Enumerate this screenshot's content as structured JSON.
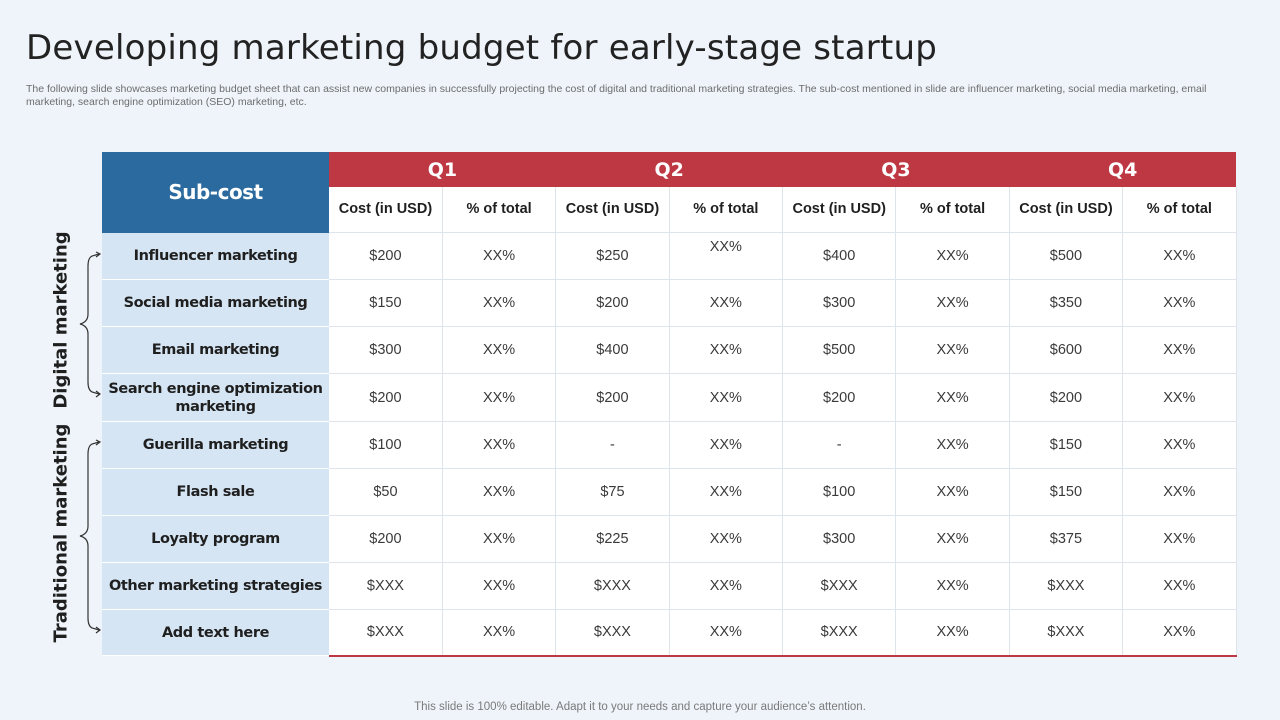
{
  "slide": {
    "title": "Developing marketing budget for early-stage startup",
    "subtitle": "The following slide showcases marketing budget sheet that can assist new companies in successfully projecting the cost of digital and traditional marketing strategies. The sub-cost mentioned in slide are influencer marketing, social media marketing, email marketing, search engine optimization (SEO) marketing, etc.",
    "footer": "This slide is 100% editable. Adapt it to your needs and capture your audience’s attention."
  },
  "groups": {
    "digital": "Digital marketing",
    "traditional": "Traditional marketing"
  },
  "table": {
    "sub_header": "Sub-cost",
    "quarters": [
      "Q1",
      "Q2",
      "Q3",
      "Q4"
    ],
    "col_cost": "Cost (in USD)",
    "col_pct": "% of total",
    "rows": [
      {
        "label": "Influencer marketing",
        "values": [
          "$200",
          "XX%",
          "$250",
          "XX%",
          "$400",
          "XX%",
          "$500",
          "XX%"
        ]
      },
      {
        "label": "Social media marketing",
        "values": [
          "$150",
          "XX%",
          "$200",
          "XX%",
          "$300",
          "XX%",
          "$350",
          "XX%"
        ]
      },
      {
        "label": "Email marketing",
        "values": [
          "$300",
          "XX%",
          "$400",
          "XX%",
          "$500",
          "XX%",
          "$600",
          "XX%"
        ]
      },
      {
        "label": "Search engine optimization marketing",
        "values": [
          "$200",
          "XX%",
          "$200",
          "XX%",
          "$200",
          "XX%",
          "$200",
          "XX%"
        ]
      },
      {
        "label": "Guerilla marketing",
        "values": [
          "$100",
          "XX%",
          "-",
          "XX%",
          "-",
          "XX%",
          "$150",
          "XX%"
        ]
      },
      {
        "label": "Flash sale",
        "values": [
          "$50",
          "XX%",
          "$75",
          "XX%",
          "$100",
          "XX%",
          "$150",
          "XX%"
        ]
      },
      {
        "label": "Loyalty program",
        "values": [
          "$200",
          "XX%",
          "$225",
          "XX%",
          "$300",
          "XX%",
          "$375",
          "XX%"
        ]
      },
      {
        "label": "Other marketing strategies",
        "values": [
          "$XXX",
          "XX%",
          "$XXX",
          "XX%",
          "$XXX",
          "XX%",
          "$XXX",
          "XX%"
        ]
      },
      {
        "label": "Add text here",
        "values": [
          "$XXX",
          "XX%",
          "$XXX",
          "XX%",
          "$XXX",
          "XX%",
          "$XXX",
          "XX%"
        ]
      }
    ]
  }
}
